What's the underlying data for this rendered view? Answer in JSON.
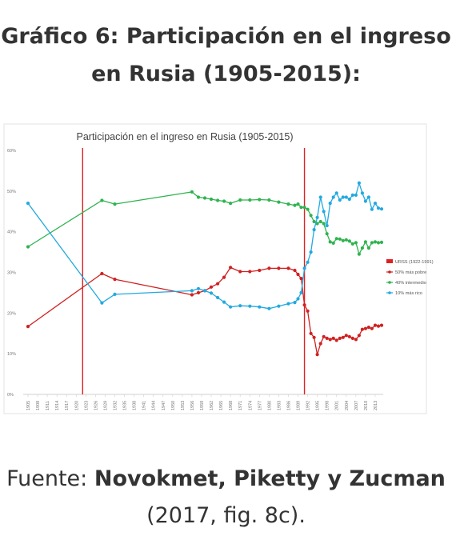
{
  "page": {
    "heading_line1": "Gráfico 6: Participación en el ingreso",
    "heading_line2": "en Rusia (1905-2015):",
    "source_prefix": "Fuente: ",
    "source_authors": "Novokmet, Piketty y Zucman",
    "source_ref": "(2017, fig. 8c)."
  },
  "colors": {
    "red": "#d02020",
    "green": "#2fb34e",
    "blue": "#22a9e0",
    "urss": "#e02020"
  },
  "chart_data": {
    "type": "line",
    "title": "Participación en el ingreso en Rusia (1905-2015)",
    "xlabel": "",
    "ylabel": "",
    "xlim": [
      1905,
      2015
    ],
    "ylim": [
      0,
      60
    ],
    "yticks": [
      0,
      10,
      20,
      30,
      40,
      50,
      60
    ],
    "ytick_labels": [
      "0%",
      "10%",
      "20%",
      "30%",
      "40%",
      "50%",
      "60%"
    ],
    "xticks": [
      1905,
      1908,
      1911,
      1914,
      1917,
      1920,
      1923,
      1926,
      1929,
      1932,
      1935,
      1938,
      1941,
      1944,
      1947,
      1950,
      1953,
      1956,
      1959,
      1962,
      1965,
      1968,
      1971,
      1974,
      1977,
      1980,
      1983,
      1986,
      1989,
      1992,
      1995,
      1998,
      2001,
      2004,
      2007,
      2010,
      2013
    ],
    "grid": false,
    "legend_position": "right",
    "urss": {
      "name": "URSS (1922-1991)",
      "start": 1922,
      "end": 1991
    },
    "series": [
      {
        "name": "50% más pobre",
        "color": "#d02020",
        "x": [
          1905,
          1928,
          1932,
          1956,
          1958,
          1960,
          1962,
          1964,
          1966,
          1968,
          1971,
          1974,
          1977,
          1980,
          1983,
          1986,
          1988,
          1989,
          1990,
          1991,
          1992,
          1993,
          1994,
          1995,
          1996,
          1997,
          1998,
          1999,
          2000,
          2001,
          2002,
          2003,
          2004,
          2005,
          2006,
          2007,
          2008,
          2009,
          2010,
          2011,
          2012,
          2013,
          2014,
          2015
        ],
        "y": [
          16.7,
          29.7,
          28.3,
          24.5,
          25.0,
          25.5,
          26.4,
          27.2,
          28.8,
          31.2,
          30.2,
          30.2,
          30.5,
          31.0,
          31.0,
          31.0,
          30.5,
          29.5,
          28.5,
          22.0,
          20.5,
          15.0,
          14.0,
          9.8,
          12.5,
          14.2,
          13.8,
          13.5,
          13.8,
          13.3,
          13.8,
          14.0,
          14.5,
          14.2,
          13.8,
          13.5,
          14.5,
          16.0,
          16.2,
          16.5,
          16.2,
          17.0,
          16.8,
          17.0
        ]
      },
      {
        "name": "40% intermedio",
        "color": "#2fb34e",
        "x": [
          1905,
          1928,
          1932,
          1956,
          1958,
          1960,
          1962,
          1964,
          1966,
          1968,
          1971,
          1974,
          1977,
          1980,
          1983,
          1986,
          1988,
          1989,
          1990,
          1991,
          1992,
          1993,
          1994,
          1995,
          1996,
          1997,
          1998,
          1999,
          2000,
          2001,
          2002,
          2003,
          2004,
          2005,
          2006,
          2007,
          2008,
          2009,
          2010,
          2011,
          2012,
          2013,
          2014,
          2015
        ],
        "y": [
          36.3,
          47.7,
          46.8,
          49.8,
          48.5,
          48.3,
          48.0,
          47.7,
          47.5,
          47.0,
          47.8,
          47.8,
          47.9,
          47.8,
          47.3,
          46.8,
          46.5,
          46.8,
          46.0,
          46.0,
          45.5,
          44.0,
          42.5,
          42.0,
          42.5,
          42.0,
          39.5,
          37.5,
          37.2,
          38.3,
          38.2,
          37.8,
          38.0,
          37.7,
          37.0,
          37.3,
          34.5,
          36.0,
          37.5,
          36.0,
          37.3,
          37.5,
          37.3,
          37.4
        ]
      },
      {
        "name": "10% más rico",
        "color": "#22a9e0",
        "x": [
          1905,
          1928,
          1932,
          1956,
          1958,
          1960,
          1962,
          1964,
          1966,
          1968,
          1971,
          1974,
          1977,
          1980,
          1983,
          1986,
          1988,
          1989,
          1990,
          1991,
          1992,
          1993,
          1994,
          1995,
          1996,
          1997,
          1998,
          1999,
          2000,
          2001,
          2002,
          2003,
          2004,
          2005,
          2006,
          2007,
          2008,
          2009,
          2010,
          2011,
          2012,
          2013,
          2014,
          2015
        ],
        "y": [
          47.0,
          22.5,
          24.6,
          25.5,
          26.0,
          25.5,
          24.9,
          23.8,
          22.7,
          21.5,
          21.8,
          21.7,
          21.5,
          21.1,
          21.7,
          22.3,
          22.6,
          23.5,
          25.0,
          31.0,
          32.5,
          35.0,
          40.5,
          43.5,
          48.5,
          45.0,
          41.5,
          47.0,
          48.5,
          49.5,
          47.8,
          48.5,
          48.5,
          48.0,
          49.0,
          49.0,
          52.0,
          49.5,
          47.5,
          48.5,
          45.5,
          47.0,
          45.8,
          45.6
        ]
      }
    ]
  }
}
